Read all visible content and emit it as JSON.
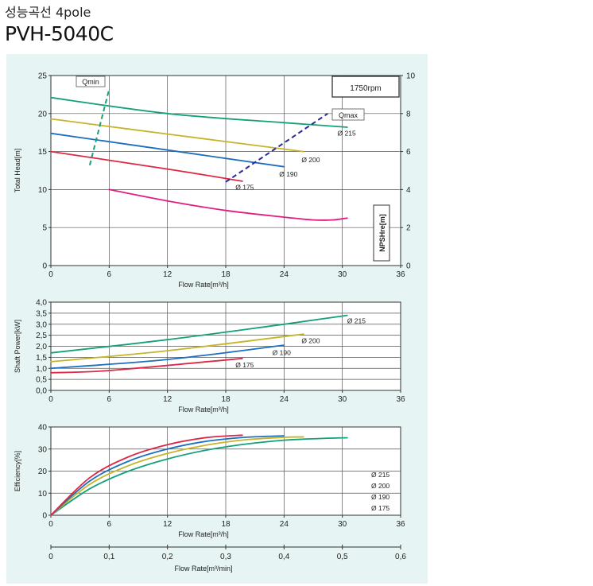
{
  "header": {
    "title_kr": "성능곡선 4pole",
    "model": "PVH-5040C"
  },
  "colors": {
    "d215": "#14a07a",
    "d200": "#c8b428",
    "d190": "#1e6ebe",
    "d175": "#dc2846",
    "npsh": "#e01e82",
    "qmin": "#14a07a",
    "qmax": "#282896"
  },
  "chart_data": [
    {
      "type": "line",
      "xlabel": "Flow Rate[m³/h]",
      "ylabel": "Total Head[m]",
      "y2label": "NPSHre[m]",
      "speed": "1750rpm",
      "xlim": [
        0,
        36
      ],
      "ylim": [
        0,
        25
      ],
      "y2lim": [
        0,
        10
      ],
      "xticks": [
        "0",
        "6",
        "12",
        "18",
        "24",
        "30",
        "36"
      ],
      "yticks": [
        "0",
        "5",
        "10",
        "15",
        "20",
        "25"
      ],
      "y2ticks": [
        "0",
        "2",
        "4",
        "6",
        "8",
        "10"
      ],
      "grid": true,
      "series": [
        {
          "name": "Ø 215",
          "color_key": "d215",
          "x": [
            0,
            12,
            24,
            30.5
          ],
          "y": [
            22.1,
            20.0,
            18.8,
            18.2
          ]
        },
        {
          "name": "Ø 200",
          "color_key": "d200",
          "x": [
            0,
            12,
            26
          ],
          "y": [
            19.3,
            17.3,
            15.0
          ]
        },
        {
          "name": "Ø 190",
          "color_key": "d190",
          "x": [
            0,
            12,
            24
          ],
          "y": [
            17.4,
            15.2,
            13.0
          ]
        },
        {
          "name": "Ø 175",
          "color_key": "d175",
          "x": [
            0,
            12,
            19.7
          ],
          "y": [
            15.0,
            12.7,
            11.1
          ]
        },
        {
          "name": "NPSHre",
          "color_key": "npsh",
          "axis": "y2",
          "x": [
            6,
            12,
            18,
            24,
            27,
            29,
            30.5
          ],
          "y": [
            4.0,
            3.4,
            2.9,
            2.55,
            2.4,
            2.4,
            2.5
          ]
        }
      ],
      "qmin": {
        "label": "Qmin",
        "x": [
          4,
          6
        ],
        "y": [
          13.2,
          23.2
        ]
      },
      "qmax": {
        "label": "Qmax",
        "x": [
          18,
          28.5
        ],
        "y": [
          11.0,
          20.0
        ]
      }
    },
    {
      "type": "line",
      "xlabel": "Flow Rate[m³/h]",
      "ylabel": "Shaft Power[kW]",
      "xlim": [
        0,
        36
      ],
      "ylim": [
        0,
        4
      ],
      "xticks": [
        "0",
        "6",
        "12",
        "18",
        "24",
        "30",
        "36"
      ],
      "yticks": [
        "0,0",
        "0,5",
        "1,0",
        "1,5",
        "2,0",
        "2,5",
        "3,0",
        "3,5",
        "4,0"
      ],
      "grid": true,
      "series": [
        {
          "name": "Ø 215",
          "color_key": "d215",
          "x": [
            0,
            12,
            24,
            30.5
          ],
          "y": [
            1.7,
            2.3,
            3.0,
            3.4
          ]
        },
        {
          "name": "Ø 200",
          "color_key": "d200",
          "x": [
            0,
            12,
            26
          ],
          "y": [
            1.3,
            1.8,
            2.55
          ]
        },
        {
          "name": "Ø 190",
          "color_key": "d190",
          "x": [
            0,
            12,
            24
          ],
          "y": [
            1.0,
            1.4,
            2.05
          ]
        },
        {
          "name": "Ø 175",
          "color_key": "d175",
          "x": [
            0,
            6,
            19.7
          ],
          "y": [
            0.8,
            0.9,
            1.45
          ]
        }
      ]
    },
    {
      "type": "line",
      "xlabel": "Flow Rate[m³/h]",
      "ylabel": "Efficiency[%]",
      "xlim": [
        0,
        36
      ],
      "ylim": [
        0,
        40
      ],
      "xticks": [
        "0",
        "6",
        "12",
        "18",
        "24",
        "30",
        "36"
      ],
      "yticks": [
        "0",
        "10",
        "20",
        "30",
        "40"
      ],
      "grid": true,
      "legend": [
        "Ø 215",
        "Ø 200",
        "Ø 190",
        "Ø 175"
      ],
      "series": [
        {
          "name": "Ø 215",
          "color_key": "d215",
          "x": [
            0,
            4,
            8,
            12,
            16,
            20,
            24,
            28,
            30.5
          ],
          "y": [
            0,
            12,
            20,
            25.5,
            29.5,
            32.2,
            34,
            34.8,
            35.1
          ]
        },
        {
          "name": "Ø 200",
          "color_key": "d200",
          "x": [
            0,
            4,
            8,
            12,
            16,
            20,
            24,
            26
          ],
          "y": [
            0,
            14,
            22.5,
            28,
            31.8,
            34.2,
            35.3,
            35.5
          ]
        },
        {
          "name": "Ø 190",
          "color_key": "d190",
          "x": [
            0,
            4,
            8,
            12,
            16,
            20,
            24
          ],
          "y": [
            0,
            15.5,
            24.5,
            30,
            33.5,
            35.3,
            36
          ]
        },
        {
          "name": "Ø 175",
          "color_key": "d175",
          "x": [
            0,
            4,
            8,
            12,
            16,
            19.7
          ],
          "y": [
            0,
            17,
            26.5,
            32,
            35.2,
            36.3
          ]
        }
      ],
      "x2label": "Flow Rate[m³/min]",
      "x2lim": [
        0,
        0.6
      ],
      "x2ticks": [
        "0",
        "0,1",
        "0,2",
        "0,3",
        "0,4",
        "0,5",
        "0,6"
      ]
    }
  ]
}
